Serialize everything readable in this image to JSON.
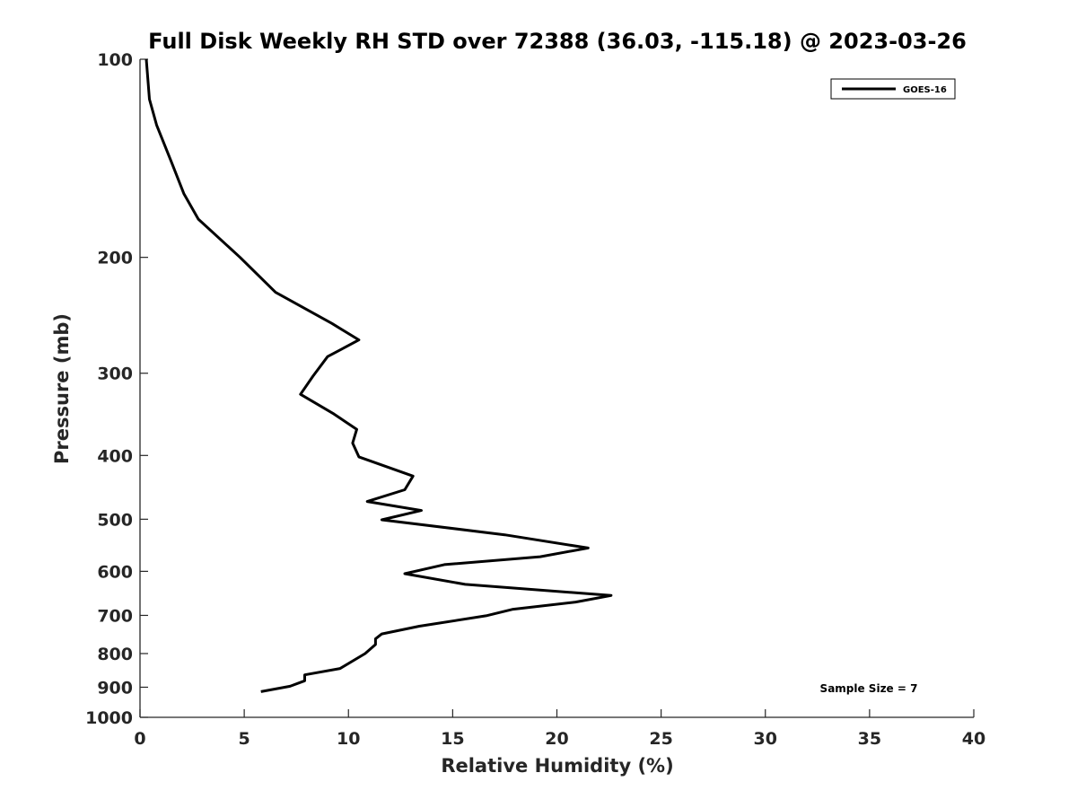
{
  "chart_data": {
    "type": "line",
    "title": "Full Disk Weekly RH STD over 72388 (36.03, -115.18) @ 2023-03-26",
    "xlabel": "Relative Humidity (%)",
    "ylabel": "Pressure (mb)",
    "xlim": [
      0,
      40
    ],
    "ylim": [
      1000,
      100
    ],
    "y_scale": "log",
    "y_reversed": true,
    "x_ticks": [
      "0",
      "5",
      "10",
      "15",
      "20",
      "25",
      "30",
      "35",
      "40"
    ],
    "y_ticks": [
      "100",
      "200",
      "300",
      "400",
      "500",
      "600",
      "700",
      "800",
      "900",
      "1000"
    ],
    "grid": false,
    "legend_position": "top-right",
    "annotation": "Sample Size = 7",
    "series": [
      {
        "name": "GOES-16",
        "color": "#000000",
        "points": [
          [
            0.3,
            100
          ],
          [
            0.45,
            115
          ],
          [
            0.8,
            126
          ],
          [
            1.5,
            143
          ],
          [
            2.1,
            160
          ],
          [
            2.8,
            175
          ],
          [
            4.8,
            200
          ],
          [
            6.5,
            226
          ],
          [
            9.2,
            252
          ],
          [
            10.5,
            267
          ],
          [
            9.0,
            283
          ],
          [
            8.3,
            303
          ],
          [
            7.7,
            323
          ],
          [
            9.3,
            346
          ],
          [
            10.4,
            365
          ],
          [
            10.2,
            383
          ],
          [
            10.5,
            402
          ],
          [
            13.1,
            430
          ],
          [
            12.7,
            451
          ],
          [
            10.9,
            470
          ],
          [
            13.5,
            485
          ],
          [
            11.6,
            501
          ],
          [
            17.5,
            528
          ],
          [
            21.5,
            553
          ],
          [
            19.2,
            570
          ],
          [
            14.6,
            586
          ],
          [
            12.7,
            605
          ],
          [
            15.6,
            628
          ],
          [
            22.6,
            653
          ],
          [
            20.9,
            668
          ],
          [
            17.9,
            685
          ],
          [
            16.6,
            701
          ],
          [
            13.4,
            727
          ],
          [
            11.6,
            747
          ],
          [
            11.3,
            760
          ],
          [
            11.3,
            775
          ],
          [
            10.8,
            800
          ],
          [
            9.6,
            843
          ],
          [
            7.9,
            862
          ],
          [
            7.9,
            880
          ],
          [
            7.2,
            897
          ],
          [
            5.8,
            914
          ]
        ]
      }
    ]
  },
  "legend": {
    "label": "GOES-16"
  },
  "annotation": {
    "sample_size": "Sample Size = 7"
  }
}
